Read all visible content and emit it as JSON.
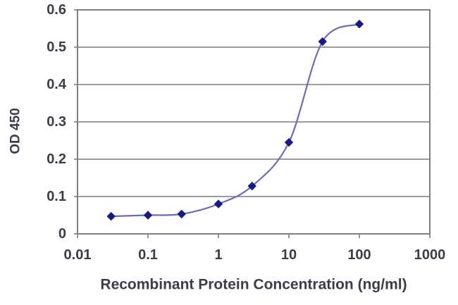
{
  "chart_data": {
    "type": "line",
    "title": "",
    "xlabel": "Recombinant Protein Concentration (ng/ml)",
    "ylabel": "OD 450",
    "x_scale": "log10",
    "xlim": [
      0.01,
      1000
    ],
    "ylim": [
      0,
      0.6
    ],
    "x_ticks": [
      0.01,
      0.1,
      1,
      10,
      100,
      1000
    ],
    "x_tick_labels": [
      "0.01",
      "0.1",
      "1",
      "10",
      "100",
      "1000"
    ],
    "y_ticks": [
      0,
      0.1,
      0.2,
      0.3,
      0.4,
      0.5,
      0.6
    ],
    "y_tick_labels": [
      "0",
      "0.1",
      "0.2",
      "0.3",
      "0.4",
      "0.5",
      "0.6"
    ],
    "grid": "horizontal",
    "legend": "none",
    "series": [
      {
        "name": "OD 450",
        "marker": "diamond",
        "smooth": true,
        "x": [
          0.03,
          0.1,
          0.3,
          1,
          3,
          10,
          30,
          100
        ],
        "y": [
          0.047,
          0.05,
          0.053,
          0.08,
          0.128,
          0.245,
          0.515,
          0.562
        ]
      }
    ],
    "colors": {
      "line": "#6b6bb8",
      "marker": "#1a1a86",
      "grid": "#7f7f7f",
      "frame": "#7f7f7f",
      "text": "#3c3c4a",
      "background": "#ffffff"
    }
  }
}
